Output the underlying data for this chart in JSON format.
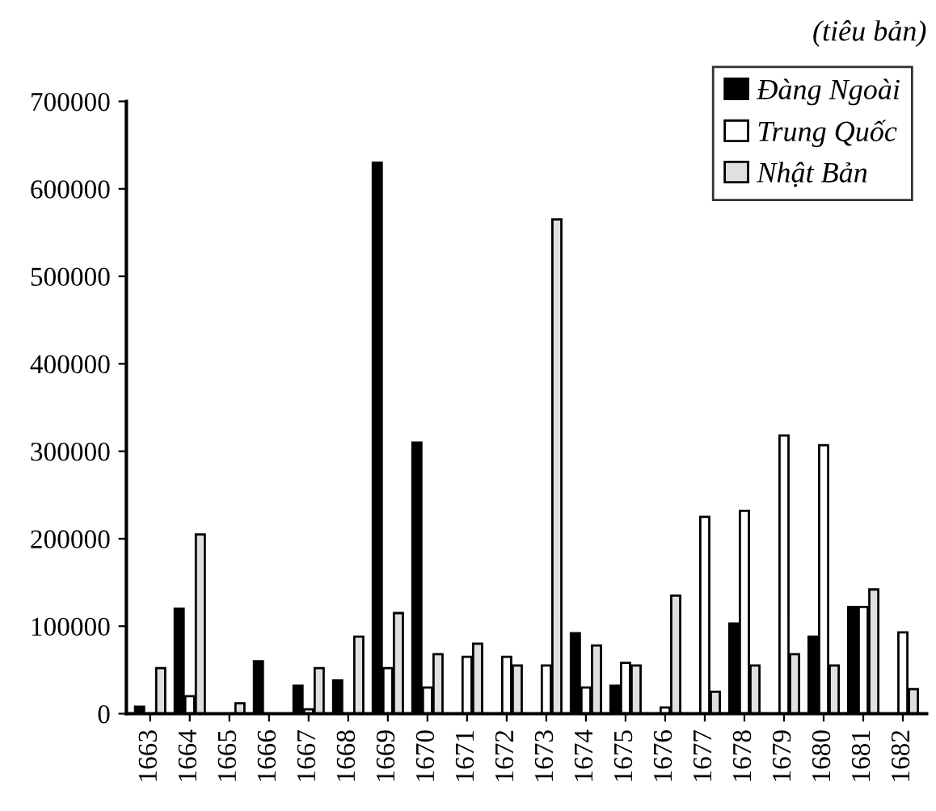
{
  "chart_data": {
    "type": "bar",
    "categories": [
      "1663",
      "1664",
      "1665",
      "1666",
      "1667",
      "1668",
      "1669",
      "1670",
      "1671",
      "1672",
      "1673",
      "1674",
      "1675",
      "1676",
      "1677",
      "1678",
      "1679",
      "1680",
      "1681",
      "1682"
    ],
    "series": [
      {
        "name": "Đàng Ngoài",
        "color": "#000000",
        "values": [
          8000,
          120000,
          null,
          60000,
          32000,
          38000,
          630000,
          310000,
          null,
          null,
          null,
          92000,
          32000,
          null,
          null,
          103000,
          null,
          88000,
          122000,
          null
        ]
      },
      {
        "name": "Trung Quốc",
        "color": "#ffffff",
        "values": [
          null,
          20000,
          null,
          null,
          5000,
          null,
          52000,
          30000,
          65000,
          65000,
          55000,
          30000,
          58000,
          7000,
          225000,
          232000,
          318000,
          307000,
          122000,
          93000
        ]
      },
      {
        "name": "Nhật Bản",
        "color": "#e0e0e0",
        "values": [
          52000,
          205000,
          12000,
          null,
          52000,
          88000,
          115000,
          68000,
          80000,
          55000,
          565000,
          78000,
          55000,
          135000,
          25000,
          55000,
          68000,
          55000,
          142000,
          28000
        ]
      }
    ],
    "annotations": [
      "(tiêu bản)"
    ],
    "ylim": [
      0,
      700000
    ],
    "yticks": [
      0,
      100000,
      200000,
      300000,
      400000,
      500000,
      600000,
      700000
    ],
    "grid": false,
    "legend": "top right"
  }
}
